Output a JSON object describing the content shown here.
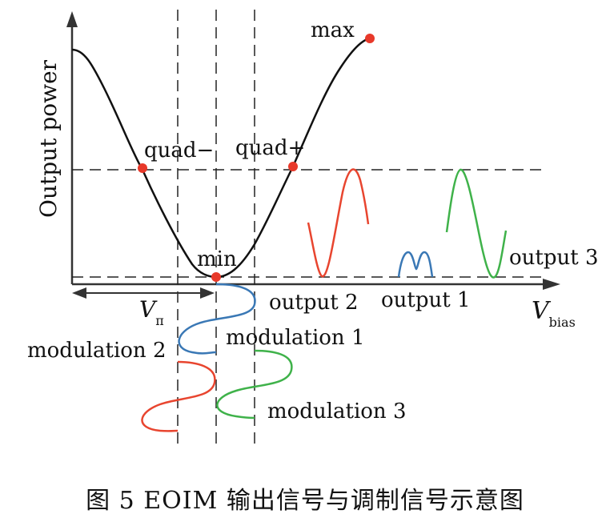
{
  "labels": {
    "y_axis": "Output power",
    "x_axis_main": "V",
    "x_axis_sub": "bias",
    "vpi_main": "V",
    "vpi_sub": "π",
    "max": "max",
    "min": "min",
    "quad_minus": "quad−",
    "quad_plus": "quad+",
    "output1": "output 1",
    "output2": "output 2",
    "output3": "output 3",
    "modulation1": "modulation 1",
    "modulation2": "modulation 2",
    "modulation3": "modulation 3"
  },
  "caption": "图 5   EOIM 输出信号与调制信号示意图",
  "colors": {
    "curve": "#111111",
    "points": "#e8392a",
    "red": "#e8452f",
    "blue": "#3a78b5",
    "green": "#3fb24a",
    "dashed": "#222222"
  }
}
